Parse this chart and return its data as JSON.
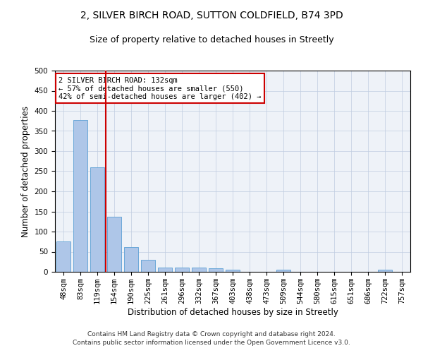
{
  "title1": "2, SILVER BIRCH ROAD, SUTTON COLDFIELD, B74 3PD",
  "title2": "Size of property relative to detached houses in Streetly",
  "xlabel": "Distribution of detached houses by size in Streetly",
  "ylabel": "Number of detached properties",
  "categories": [
    "48sqm",
    "83sqm",
    "119sqm",
    "154sqm",
    "190sqm",
    "225sqm",
    "261sqm",
    "296sqm",
    "332sqm",
    "367sqm",
    "403sqm",
    "438sqm",
    "473sqm",
    "509sqm",
    "544sqm",
    "580sqm",
    "615sqm",
    "651sqm",
    "686sqm",
    "722sqm",
    "757sqm"
  ],
  "values": [
    75,
    378,
    259,
    136,
    61,
    30,
    11,
    11,
    11,
    8,
    6,
    0,
    0,
    5,
    0,
    0,
    0,
    0,
    0,
    5,
    0
  ],
  "bar_color": "#aec6e8",
  "bar_edge_color": "#5a9fd4",
  "vline_color": "#cc0000",
  "vline_index": 2,
  "annotation_text": "2 SILVER BIRCH ROAD: 132sqm\n← 57% of detached houses are smaller (550)\n42% of semi-detached houses are larger (402) →",
  "annotation_box_color": "#ffffff",
  "annotation_box_edge_color": "#cc0000",
  "ylim": [
    0,
    500
  ],
  "yticks": [
    0,
    50,
    100,
    150,
    200,
    250,
    300,
    350,
    400,
    450,
    500
  ],
  "background_color": "#eef2f8",
  "footer": "Contains HM Land Registry data © Crown copyright and database right 2024.\nContains public sector information licensed under the Open Government Licence v3.0.",
  "title1_fontsize": 10,
  "title2_fontsize": 9,
  "xlabel_fontsize": 8.5,
  "ylabel_fontsize": 8.5,
  "tick_fontsize": 7.5,
  "footer_fontsize": 6.5,
  "annot_fontsize": 7.5
}
